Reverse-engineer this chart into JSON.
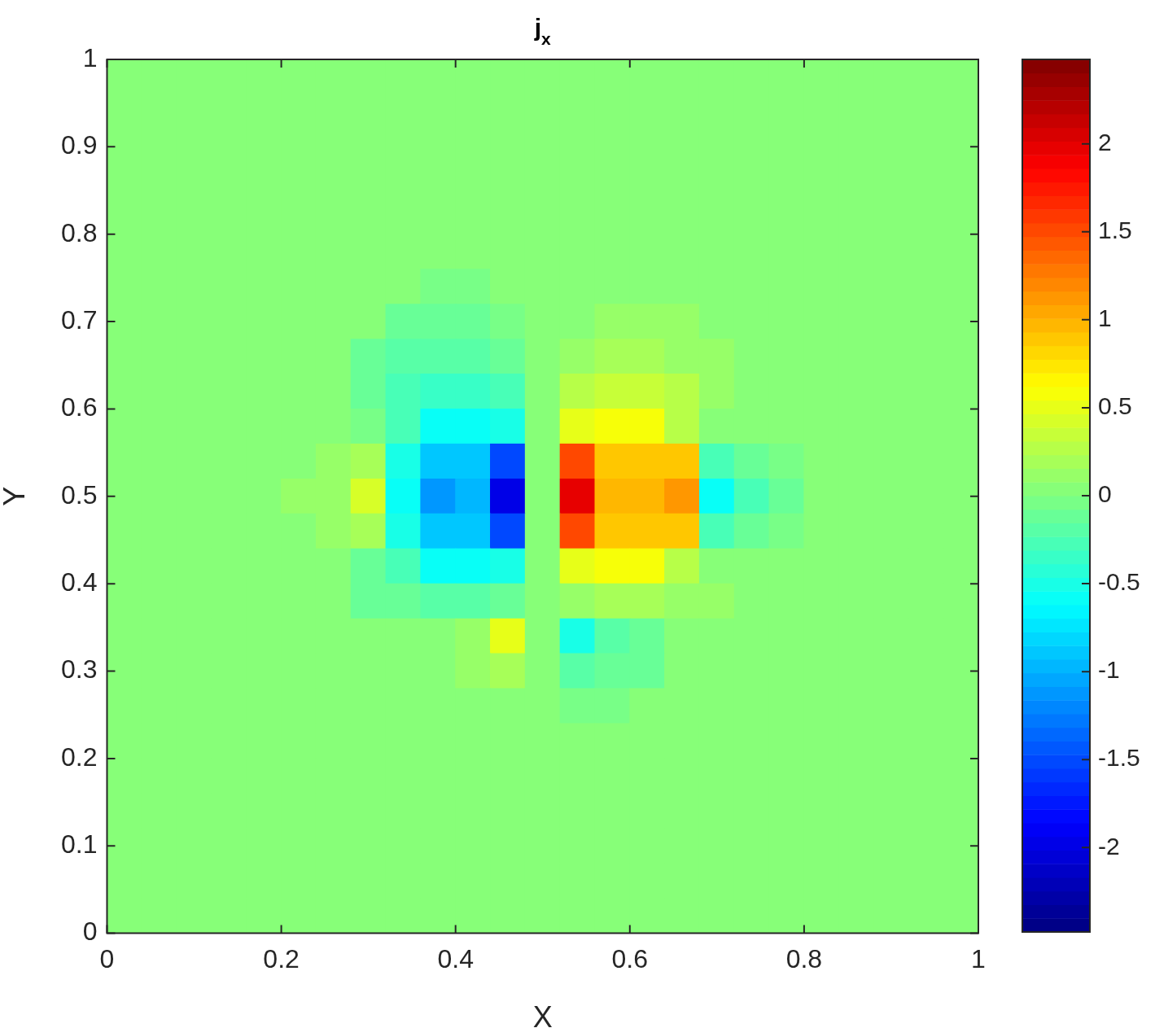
{
  "chart_data": {
    "type": "heatmap",
    "title": "j$_{x}$",
    "xlabel": "X",
    "ylabel": "Y",
    "x": [
      0.02,
      0.06,
      0.1,
      0.14,
      0.18,
      0.22,
      0.26,
      0.3,
      0.34,
      0.38,
      0.42,
      0.46,
      0.5,
      0.54,
      0.58,
      0.62,
      0.66,
      0.7,
      0.74,
      0.78,
      0.82,
      0.86,
      0.9,
      0.94,
      0.98
    ],
    "y": [
      0.98,
      0.94,
      0.9,
      0.86,
      0.82,
      0.78,
      0.74,
      0.7,
      0.66,
      0.62,
      0.58,
      0.54,
      0.5,
      0.46,
      0.42,
      0.38,
      0.34,
      0.3,
      0.26,
      0.22,
      0.18,
      0.14,
      0.1,
      0.06,
      0.02
    ],
    "xlim": [
      0,
      1
    ],
    "xticks": [
      0,
      0.2,
      0.4,
      0.6,
      0.8,
      1
    ],
    "ylim": [
      0,
      1
    ],
    "yticks": [
      0,
      0.1,
      0.2,
      0.3,
      0.4,
      0.5,
      0.6,
      0.7,
      0.8,
      0.9,
      1
    ],
    "clim": [
      -2.48,
      2.48
    ],
    "cticks": [
      -2,
      -1.5,
      -1,
      -0.5,
      0,
      0.5,
      1,
      1.5,
      2
    ],
    "cells": [
      [
        0,
        0,
        0,
        0,
        0,
        0,
        0,
        0,
        0,
        0,
        0,
        0,
        0,
        0,
        0,
        0,
        0,
        0,
        0,
        0,
        0,
        0,
        0,
        0,
        0
      ],
      [
        0,
        0,
        0,
        0,
        0,
        0,
        0,
        0,
        0,
        0,
        0,
        0,
        0,
        0,
        0,
        0,
        0,
        0,
        0,
        0,
        0,
        0,
        0,
        0,
        0
      ],
      [
        0,
        0,
        0,
        0,
        0,
        0,
        0,
        0,
        0,
        0,
        0,
        0,
        0,
        0,
        0,
        0,
        0,
        0,
        0,
        0,
        0,
        0,
        0,
        0,
        0
      ],
      [
        0,
        0,
        0,
        0,
        0,
        0,
        0,
        0,
        0,
        0,
        0,
        0,
        0,
        0,
        0,
        0,
        0,
        0,
        0,
        0,
        0,
        0,
        0,
        0,
        0
      ],
      [
        0,
        0,
        0,
        0,
        0,
        0,
        0,
        0,
        0,
        0,
        0,
        0,
        0,
        0,
        0,
        0,
        0,
        0,
        0,
        0,
        0,
        0,
        0,
        0,
        0
      ],
      [
        0,
        0,
        0,
        0,
        0,
        0,
        0,
        0,
        0,
        0,
        0,
        0,
        0,
        0,
        0,
        0,
        0,
        0,
        0,
        0,
        0,
        0,
        0,
        0,
        0
      ],
      [
        0,
        0,
        0,
        0,
        0,
        0,
        0,
        0,
        0,
        -0.05,
        -0.05,
        0,
        0,
        0,
        0.05,
        0.05,
        0,
        0,
        0,
        0,
        0,
        0,
        0,
        0,
        0
      ],
      [
        0,
        0,
        0,
        0,
        0,
        0,
        0,
        0,
        -0.12,
        -0.12,
        -0.1,
        -0.05,
        0,
        0.05,
        0.1,
        0.12,
        0.12,
        0,
        0,
        0,
        0,
        0,
        0,
        0,
        0
      ],
      [
        0,
        0,
        0,
        0,
        0,
        0,
        0,
        -0.15,
        -0.2,
        -0.2,
        -0.2,
        -0.1,
        0,
        0.1,
        0.2,
        0.2,
        0.15,
        0.15,
        0,
        0,
        0,
        0,
        0,
        0,
        0
      ],
      [
        0,
        0,
        0,
        0,
        0,
        0,
        0,
        -0.1,
        -0.25,
        -0.35,
        -0.35,
        -0.25,
        0,
        0.25,
        0.35,
        0.35,
        0.25,
        0.1,
        0,
        0,
        0,
        0,
        0,
        0,
        0
      ],
      [
        0,
        0,
        0,
        0,
        0,
        0,
        0,
        -0.05,
        -0.3,
        -0.6,
        -0.6,
        -0.5,
        0,
        0.5,
        0.6,
        0.6,
        0.3,
        0.05,
        0,
        0,
        0,
        0,
        0,
        0,
        0
      ],
      [
        0,
        0,
        0,
        0,
        0,
        0,
        0.1,
        0.2,
        -0.5,
        -0.9,
        -0.9,
        -1.5,
        0,
        1.5,
        0.9,
        0.9,
        0.9,
        -0.3,
        -0.15,
        -0.05,
        0,
        0,
        0,
        0,
        0
      ],
      [
        0,
        0,
        0,
        0,
        0,
        0.1,
        0.15,
        0.4,
        -0.6,
        -1.1,
        -1,
        -2,
        0,
        2,
        1,
        1,
        1.1,
        -0.6,
        -0.25,
        -0.1,
        0,
        0,
        0,
        0,
        0
      ],
      [
        0,
        0,
        0,
        0,
        0,
        0,
        0.1,
        0.2,
        -0.5,
        -0.9,
        -0.9,
        -1.5,
        0,
        1.5,
        0.9,
        0.9,
        0.9,
        -0.3,
        -0.15,
        -0.05,
        0,
        0,
        0,
        0,
        0
      ],
      [
        0,
        0,
        0,
        0,
        0,
        0,
        0,
        -0.1,
        -0.3,
        -0.6,
        -0.6,
        -0.5,
        0,
        0.5,
        0.6,
        0.6,
        0.3,
        0.05,
        0,
        0,
        0,
        0,
        0,
        0,
        0
      ],
      [
        0,
        0,
        0,
        0,
        0,
        0,
        0,
        -0.1,
        -0.15,
        -0.2,
        -0.2,
        -0.15,
        0,
        0.15,
        0.2,
        0.2,
        0.15,
        0.1,
        0,
        0,
        0,
        0,
        0,
        0,
        0
      ],
      [
        0,
        0,
        0,
        0,
        0,
        0,
        0,
        0,
        0,
        0.05,
        0.15,
        0.5,
        0,
        -0.5,
        -0.2,
        -0.1,
        0,
        0,
        0,
        0,
        0,
        0,
        0,
        0,
        0
      ],
      [
        0,
        0,
        0,
        0,
        0,
        0,
        0,
        0,
        0,
        0.05,
        0.15,
        0.2,
        0,
        -0.2,
        -0.15,
        -0.1,
        0,
        0,
        0,
        0,
        0,
        0,
        0,
        0,
        0
      ],
      [
        0,
        0,
        0,
        0,
        0,
        0,
        0,
        0,
        0,
        0,
        0,
        0.05,
        0,
        -0.05,
        -0.05,
        0,
        0,
        0,
        0,
        0,
        0,
        0,
        0,
        0,
        0
      ],
      [
        0,
        0,
        0,
        0,
        0,
        0,
        0,
        0,
        0,
        0,
        0,
        0,
        0,
        0,
        0,
        0,
        0,
        0,
        0,
        0,
        0,
        0,
        0,
        0,
        0
      ],
      [
        0,
        0,
        0,
        0,
        0,
        0,
        0,
        0,
        0,
        0,
        0,
        0,
        0,
        0,
        0,
        0,
        0,
        0,
        0,
        0,
        0,
        0,
        0,
        0,
        0
      ],
      [
        0,
        0,
        0,
        0,
        0,
        0,
        0,
        0,
        0,
        0,
        0,
        0,
        0,
        0,
        0,
        0,
        0,
        0,
        0,
        0,
        0,
        0,
        0,
        0,
        0
      ],
      [
        0,
        0,
        0,
        0,
        0,
        0,
        0,
        0,
        0,
        0,
        0,
        0,
        0,
        0,
        0,
        0,
        0,
        0,
        0,
        0,
        0,
        0,
        0,
        0,
        0
      ],
      [
        0,
        0,
        0,
        0,
        0,
        0,
        0,
        0,
        0,
        0,
        0,
        0,
        0,
        0,
        0,
        0,
        0,
        0,
        0,
        0,
        0,
        0,
        0,
        0,
        0
      ],
      [
        0,
        0,
        0,
        0,
        0,
        0,
        0,
        0,
        0,
        0,
        0,
        0,
        0,
        0,
        0,
        0,
        0,
        0,
        0,
        0,
        0,
        0,
        0,
        0,
        0
      ]
    ]
  }
}
